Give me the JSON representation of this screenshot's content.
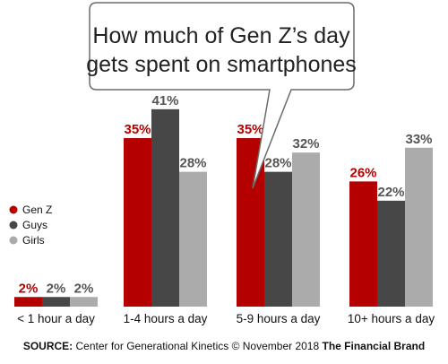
{
  "chart_data": {
    "type": "bar",
    "title_lines": [
      "How much of Gen Z’s day",
      "gets spent on smartphones"
    ],
    "categories": [
      "< 1 hour a day",
      "1-4 hours a day",
      "5-9 hours a day",
      "10+ hours a day"
    ],
    "series": [
      {
        "name": "Gen Z",
        "color": "#b50000",
        "values": [
          2,
          35,
          35,
          26
        ]
      },
      {
        "name": "Guys",
        "color": "#474747",
        "values": [
          2,
          41,
          28,
          22
        ]
      },
      {
        "name": "Girls",
        "color": "#ababab",
        "values": [
          2,
          28,
          32,
          33
        ]
      }
    ],
    "value_suffix": "%",
    "ylim": [
      0,
      45
    ],
    "grid": false,
    "legend_position": "left-middle"
  },
  "source": {
    "label": "SOURCE:",
    "text": "Center for Generational Kinetics © November 2018",
    "brand": "The Financial Brand"
  }
}
